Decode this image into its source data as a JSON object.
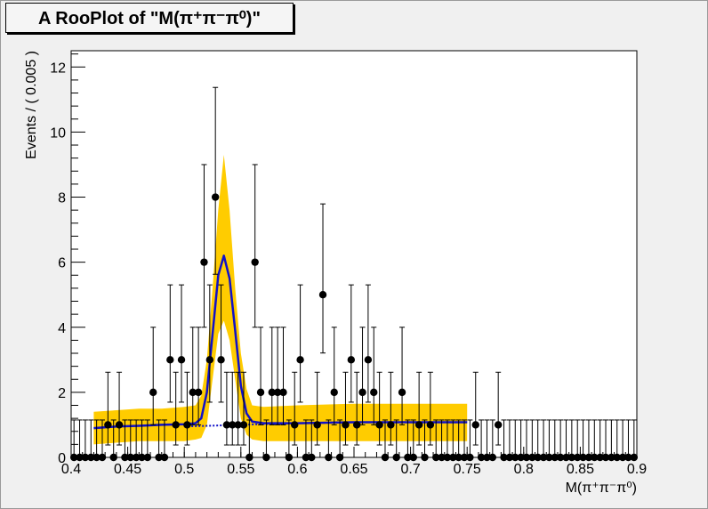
{
  "chart_data": {
    "type": "scatter",
    "title": "A RooPlot of \"M(π⁺π⁻π⁰)\"",
    "xlabel": "M(π⁺π⁻π⁰)",
    "ylabel": "Events / ( 0.005 )",
    "xlim": [
      0.4,
      0.9
    ],
    "ylim": [
      0,
      12.5
    ],
    "x_ticks": [
      "0.4",
      "0.45",
      "0.5",
      "0.55",
      "0.6",
      "0.65",
      "0.7",
      "0.75",
      "0.8",
      "0.85",
      "0.9"
    ],
    "y_ticks": [
      "0",
      "2",
      "4",
      "6",
      "8",
      "10",
      "12"
    ],
    "grid": false,
    "series": [
      {
        "kind": "data-points",
        "bin_width": 0.005,
        "x_start": 0.4025,
        "values": [
          0,
          0,
          0,
          0,
          0,
          0,
          1,
          0,
          1,
          0,
          0,
          0,
          0,
          0,
          2,
          0,
          0,
          3,
          1,
          3,
          1,
          2,
          2,
          6,
          3,
          8,
          3,
          1,
          1,
          1,
          1,
          0,
          6,
          2,
          0,
          2,
          2,
          2,
          0,
          1,
          3,
          0,
          0,
          1,
          5,
          0,
          2,
          0,
          1,
          3,
          1,
          2,
          3,
          2,
          1,
          0,
          1,
          0,
          2,
          0,
          0,
          1,
          0,
          1,
          0,
          0,
          0,
          0,
          0,
          0,
          0,
          1,
          0,
          0,
          0,
          1,
          0,
          0,
          0,
          0,
          0,
          0,
          0,
          0,
          0,
          0,
          0,
          0,
          0,
          0,
          0,
          0,
          0,
          0,
          0,
          0,
          0,
          0,
          0,
          0
        ]
      },
      {
        "kind": "fit-curve",
        "color": "#1010c8",
        "x": [
          0.42,
          0.44,
          0.46,
          0.48,
          0.5,
          0.51,
          0.515,
          0.52,
          0.525,
          0.53,
          0.535,
          0.54,
          0.545,
          0.55,
          0.555,
          0.56,
          0.57,
          0.6,
          0.65,
          0.7,
          0.75
        ],
        "y": [
          0.9,
          0.95,
          0.97,
          1.0,
          1.02,
          1.05,
          1.2,
          2.0,
          3.8,
          5.6,
          6.2,
          5.5,
          3.9,
          2.2,
          1.35,
          1.1,
          1.05,
          1.05,
          1.08,
          1.08,
          1.08
        ]
      },
      {
        "kind": "error-band",
        "color": "#ffcc00",
        "x": [
          0.42,
          0.44,
          0.46,
          0.48,
          0.5,
          0.51,
          0.515,
          0.52,
          0.525,
          0.53,
          0.535,
          0.54,
          0.545,
          0.55,
          0.555,
          0.56,
          0.57,
          0.6,
          0.65,
          0.7,
          0.75
        ],
        "upper": [
          1.4,
          1.45,
          1.5,
          1.5,
          1.55,
          1.6,
          1.9,
          3.0,
          5.2,
          7.6,
          9.3,
          7.6,
          5.2,
          3.2,
          2.1,
          1.6,
          1.55,
          1.6,
          1.65,
          1.65,
          1.65
        ],
        "lower": [
          0.4,
          0.45,
          0.5,
          0.5,
          0.5,
          0.55,
          0.6,
          1.0,
          2.4,
          3.8,
          4.2,
          3.6,
          2.4,
          1.2,
          0.7,
          0.55,
          0.5,
          0.5,
          0.5,
          0.5,
          0.5
        ]
      },
      {
        "kind": "extrapolated-curve",
        "style": "dotted",
        "color": "#1010c8",
        "x": [
          0.5,
          0.55,
          0.6,
          0.65,
          0.7,
          0.75
        ],
        "y": [
          0.95,
          1.0,
          1.05,
          1.08,
          1.08,
          1.08
        ]
      }
    ]
  }
}
